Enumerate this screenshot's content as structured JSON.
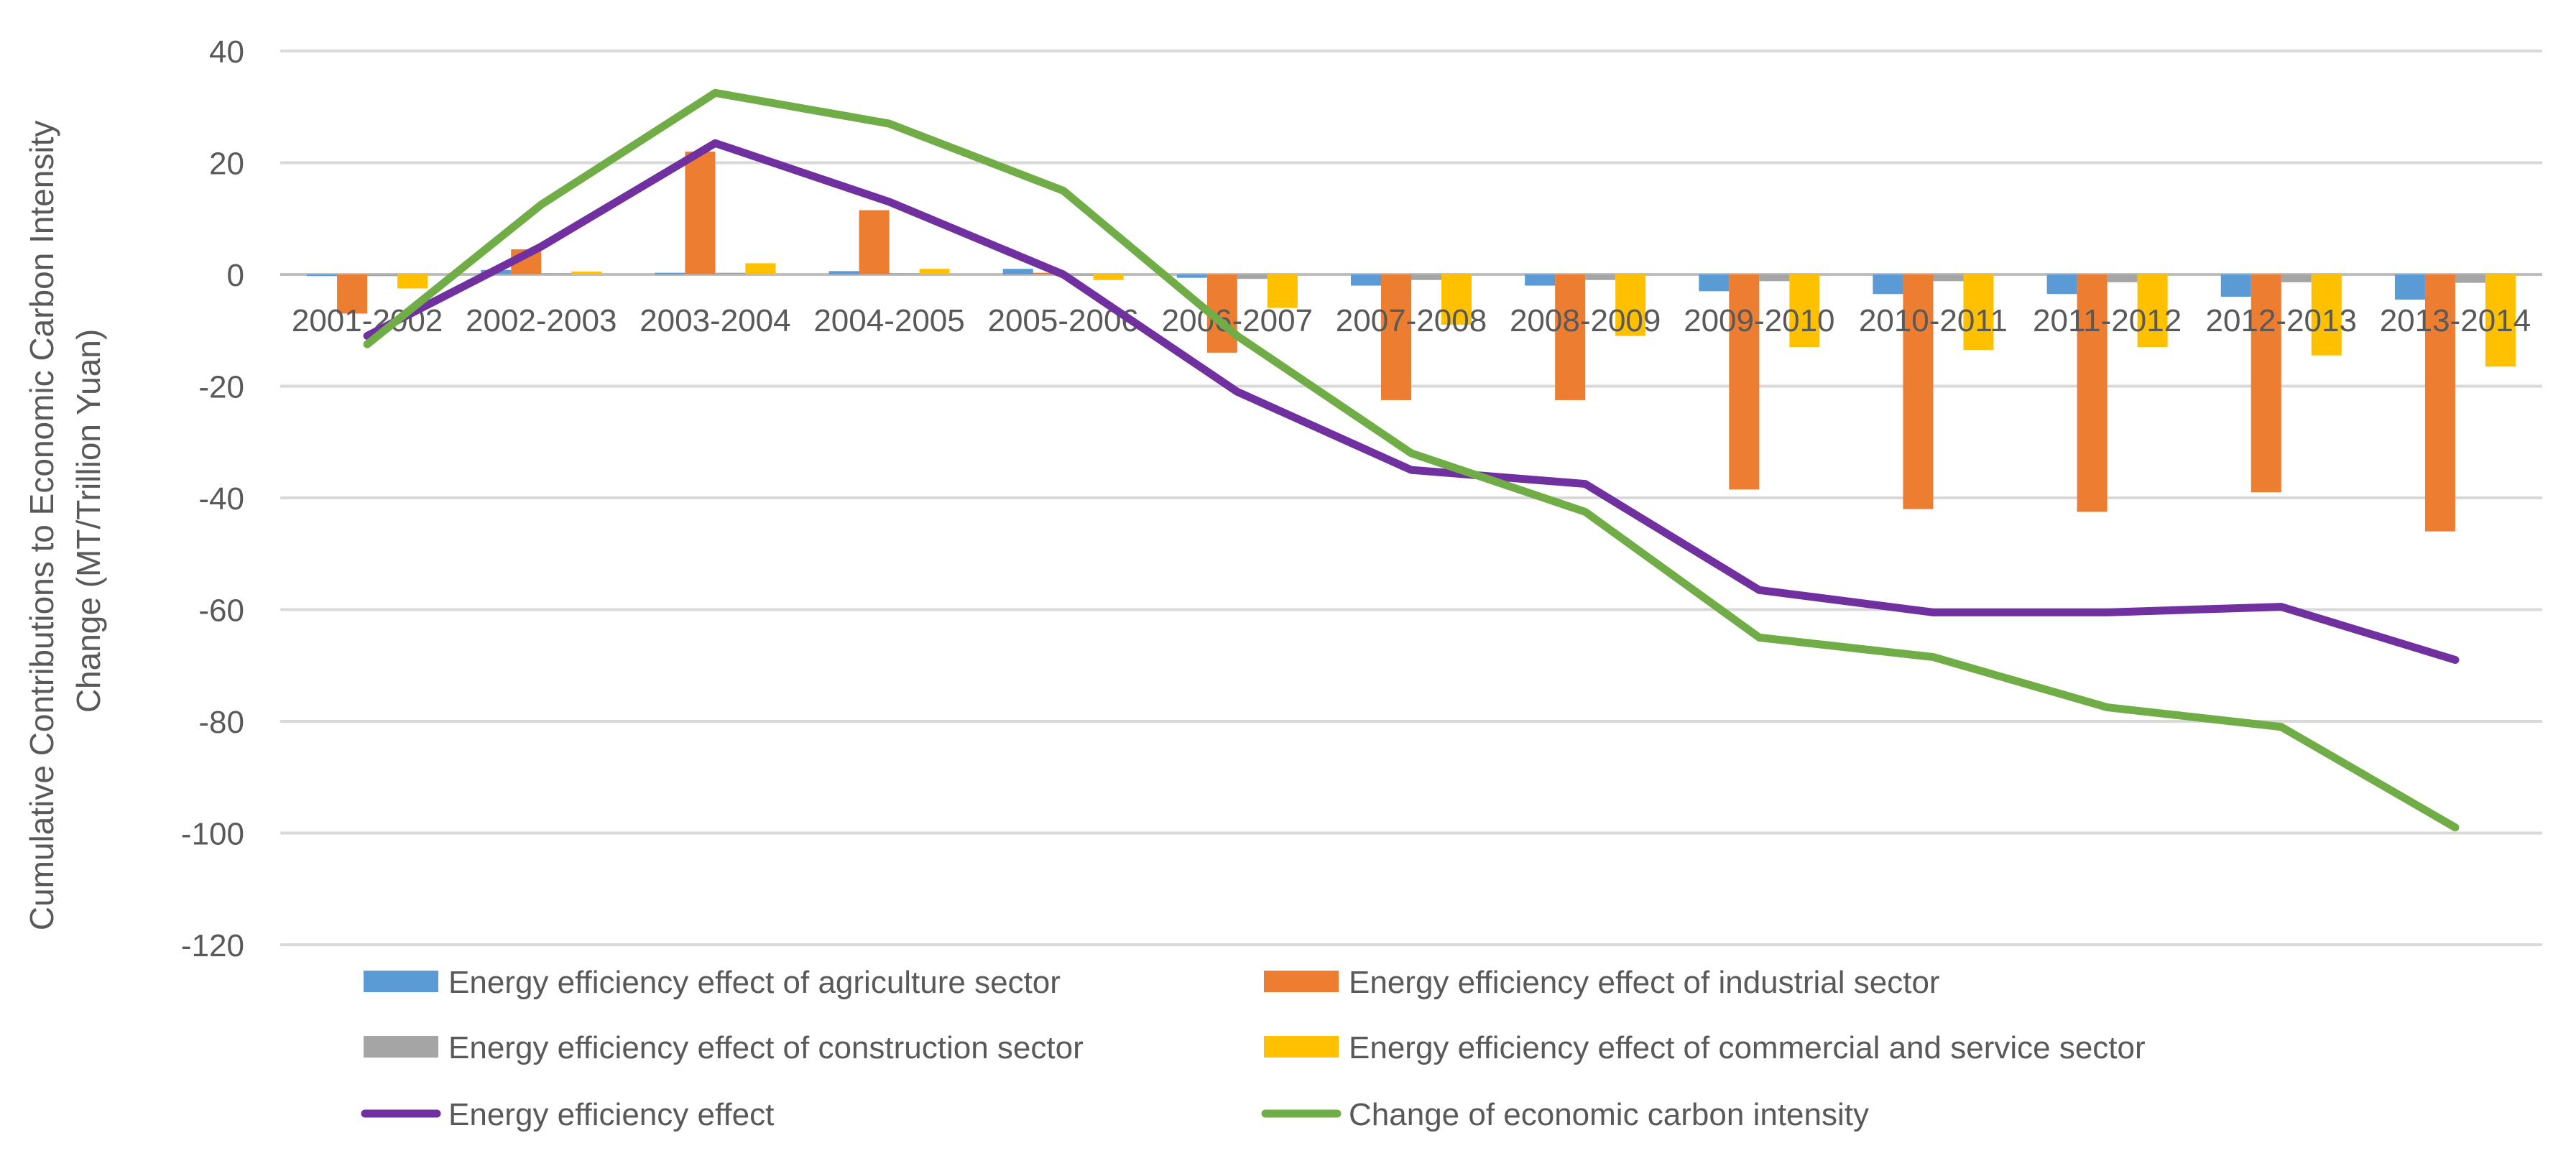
{
  "chart_data": {
    "type": "bar",
    "title": "",
    "xlabel": "",
    "ylabel": "Cumulative Contributions to Economic Carbon Intensity Change (MT/Trillion Yuan)",
    "ylabel_lines": [
      "Cumulative Contributions to Economic Carbon Intensity",
      "Change (MT/Trillion Yuan)"
    ],
    "ylim": [
      -120,
      40
    ],
    "yticks": [
      40,
      20,
      0,
      -20,
      -40,
      -60,
      -80,
      -100,
      -120
    ],
    "grid": true,
    "legend_position": "bottom",
    "categories": [
      "2001-2002",
      "2002-2003",
      "2003-2004",
      "2004-2005",
      "2005-2006",
      "2006-2007",
      "2007-2008",
      "2008-2009",
      "2009-2010",
      "2010-2011",
      "2011-2012",
      "2012-2013",
      "2013-2014"
    ],
    "series": [
      {
        "name": "Energy efficiency effect of agriculture sector",
        "kind": "bar",
        "color": "#5B9BD5",
        "values": [
          -0.3,
          0.8,
          0.3,
          0.6,
          1.0,
          -0.6,
          -2.0,
          -2.0,
          -3.0,
          -3.5,
          -3.5,
          -4.0,
          -4.5
        ]
      },
      {
        "name": "Energy efficiency effect of industrial sector",
        "kind": "bar",
        "color": "#ED7D31",
        "values": [
          -7.0,
          4.5,
          22.0,
          11.5,
          0.3,
          -14.0,
          -22.5,
          -22.5,
          -38.5,
          -42.0,
          -42.5,
          -39.0,
          -46.0
        ]
      },
      {
        "name": "Energy efficiency effect of construction sector",
        "kind": "bar",
        "color": "#A5A5A5",
        "values": [
          -0.3,
          0.2,
          0.3,
          0.2,
          -0.2,
          -0.8,
          -1.0,
          -1.0,
          -1.2,
          -1.2,
          -1.4,
          -1.4,
          -1.5
        ]
      },
      {
        "name": "Energy efficiency effect of commercial and service sector",
        "kind": "bar",
        "color": "#FFC000",
        "values": [
          -2.5,
          0.5,
          2.0,
          1.0,
          -1.0,
          -6.0,
          -9.0,
          -11.0,
          -13.0,
          -13.5,
          -13.0,
          -14.5,
          -16.5
        ]
      },
      {
        "name": "Energy efficiency effect",
        "kind": "line",
        "color": "#7030A0",
        "values": [
          -11.0,
          5.0,
          23.5,
          13.0,
          0.0,
          -21.0,
          -35.0,
          -37.5,
          -56.5,
          -60.5,
          -60.5,
          -59.5,
          -69.0
        ]
      },
      {
        "name": "Change of economic carbon intensity",
        "kind": "line",
        "color": "#70AD47",
        "values": [
          -12.5,
          12.5,
          32.5,
          27.0,
          15.0,
          -11.0,
          -32.0,
          -42.5,
          -65.0,
          -68.5,
          -77.5,
          -81.0,
          -99.0
        ]
      }
    ]
  }
}
